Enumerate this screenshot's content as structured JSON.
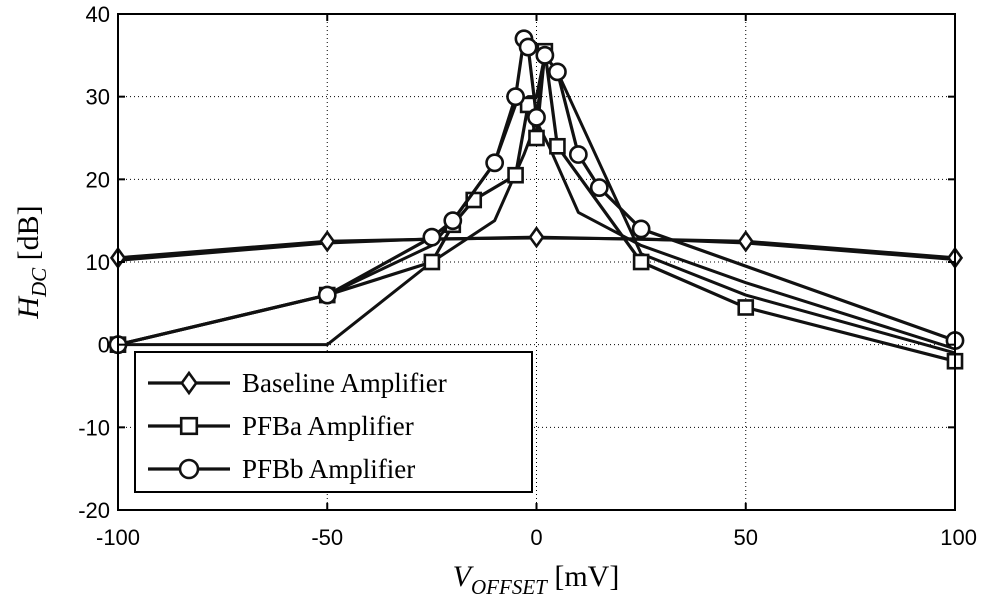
{
  "chart_data": {
    "type": "line",
    "title": "",
    "xlabel": {
      "main": "V",
      "sub": "OFFSET",
      "unit": " [mV]"
    },
    "ylabel": {
      "main": "H",
      "sub": "DC",
      "unit": " [dB]"
    },
    "xlim": [
      -100,
      100
    ],
    "ylim": [
      -20,
      40
    ],
    "xticks": [
      -100,
      -50,
      0,
      50,
      100
    ],
    "yticks": [
      -20,
      -10,
      0,
      10,
      20,
      30,
      40
    ],
    "grid": true,
    "legend_position": "bottom-left",
    "series": [
      {
        "name": "Baseline Amplifier",
        "marker": "diamond",
        "x": [
          -100,
          -50,
          0,
          50,
          100
        ],
        "y": [
          10.5,
          12.5,
          13.0,
          12.5,
          10.5
        ]
      },
      {
        "name": "PFBa Amplifier",
        "marker": "square",
        "x": [
          -100,
          -50,
          -25,
          -20,
          -15,
          -5,
          -2,
          0,
          2,
          5,
          25,
          50,
          100
        ],
        "y": [
          0,
          6,
          10,
          14.5,
          17.5,
          20.5,
          29,
          25,
          35.5,
          24,
          10,
          4.5,
          -2
        ]
      },
      {
        "name": "PFBb Amplifier",
        "marker": "circle",
        "x": [
          -100,
          -50,
          -25,
          -20,
          -10,
          -5,
          -3,
          -2,
          0,
          2,
          5,
          10,
          15,
          25,
          100
        ],
        "y": [
          0,
          6,
          13,
          15,
          22,
          30,
          37,
          36,
          27.5,
          35,
          33,
          23,
          19,
          14,
          0.5
        ]
      }
    ],
    "extra_traces": [
      {
        "x": [
          -100,
          -50,
          -25,
          -20,
          -10,
          -5,
          -2,
          0,
          2,
          5,
          25,
          50,
          100
        ],
        "y": [
          0,
          6,
          12,
          15,
          22,
          29,
          30,
          30,
          35,
          33,
          11,
          6,
          -1
        ]
      },
      {
        "x": [
          -100,
          -50,
          -25,
          -10,
          -3,
          0,
          3,
          10,
          25,
          50,
          100
        ],
        "y": [
          0,
          0,
          10,
          15,
          23,
          27,
          24,
          16,
          12,
          7.5,
          -0.5
        ]
      },
      {
        "x": [
          -100,
          -50,
          -25,
          0,
          25,
          50,
          100
        ],
        "y": [
          10.2,
          12.3,
          12.8,
          12.9,
          12.8,
          12.3,
          10.3
        ]
      }
    ]
  }
}
